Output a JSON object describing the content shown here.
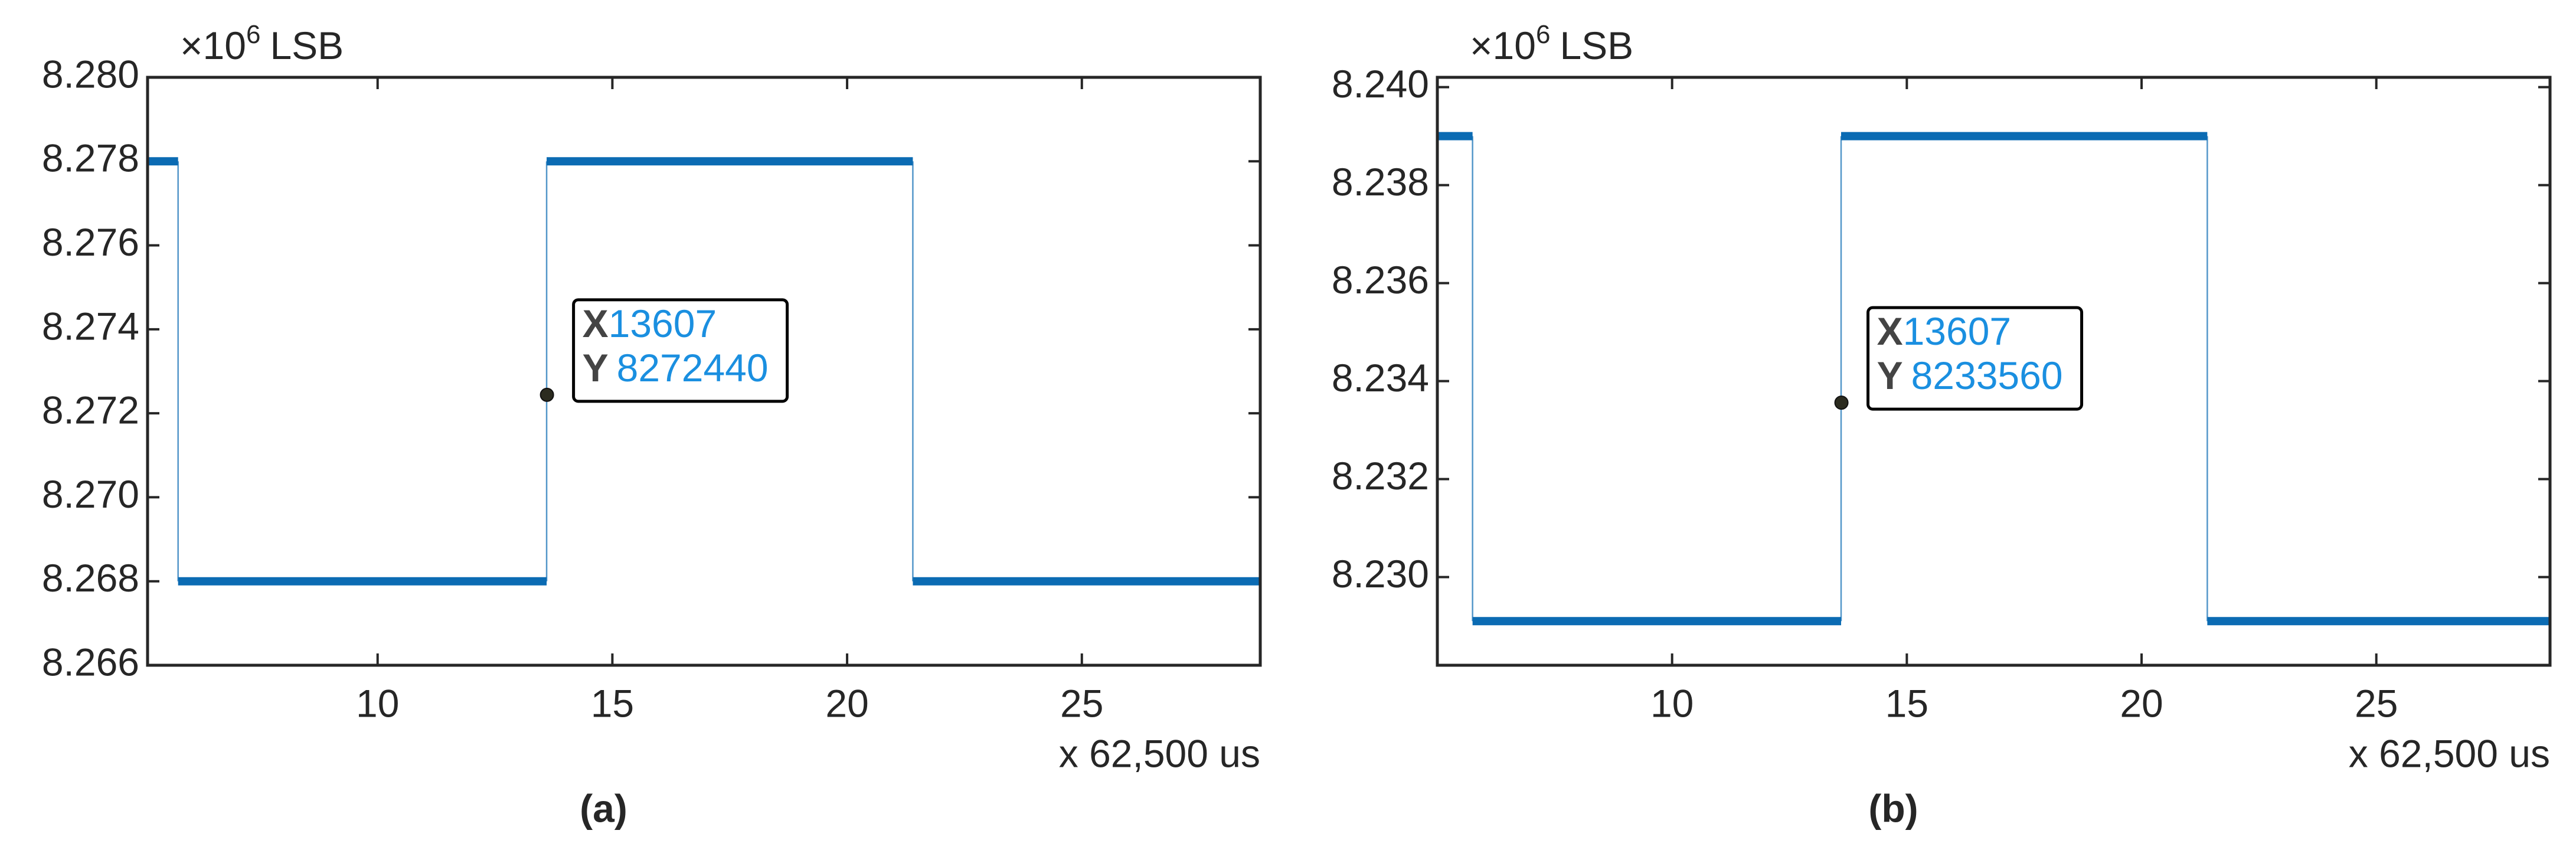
{
  "chart_data": [
    {
      "type": "line",
      "caption": "(a)",
      "y_axis_multiplier": "×10",
      "y_axis_exponent": "6",
      "y_axis_unit": "LSB",
      "x_axis_label": "x 62,500 us",
      "x": [
        5.1,
        5.75,
        5.75,
        13.6,
        13.6,
        21.4,
        21.4,
        28.8
      ],
      "series": [
        {
          "color": "#0b6bb3",
          "values": [
            8.278,
            8.278,
            8.268,
            8.268,
            8.278,
            8.278,
            8.268,
            8.268
          ]
        }
      ],
      "xlim": [
        5.1,
        28.8
      ],
      "xticks": [
        10,
        15,
        20,
        25
      ],
      "ylim": [
        8.266,
        8.28
      ],
      "yticks": [
        {
          "value": 8.266,
          "label": "8.266"
        },
        {
          "value": 8.268,
          "label": "8.268"
        },
        {
          "value": 8.27,
          "label": "8.270"
        },
        {
          "value": 8.272,
          "label": "8.272"
        },
        {
          "value": 8.274,
          "label": "8.274"
        },
        {
          "value": 8.276,
          "label": "8.276"
        },
        {
          "value": 8.278,
          "label": "8.278"
        },
        {
          "value": 8.28,
          "label": "8.280"
        }
      ],
      "datatip": {
        "x": 13.607,
        "y": 8.27244,
        "x_name": "X",
        "x_text": "13607",
        "y_name": "Y",
        "y_text": "8272440"
      }
    },
    {
      "type": "line",
      "caption": "(b)",
      "y_axis_multiplier": "×10",
      "y_axis_exponent": "6",
      "y_axis_unit": "LSB",
      "x_axis_label": "x 62,500 us",
      "x": [
        5.0,
        5.75,
        5.75,
        13.6,
        13.6,
        21.4,
        21.4,
        28.7
      ],
      "series": [
        {
          "color": "#0b6bb3",
          "values": [
            8.239,
            8.239,
            8.2291,
            8.2291,
            8.239,
            8.239,
            8.2291,
            8.2291
          ]
        }
      ],
      "xlim": [
        5.0,
        28.7
      ],
      "xticks": [
        10,
        15,
        20,
        25
      ],
      "ylim": [
        8.2282,
        8.2402
      ],
      "yticks": [
        {
          "value": 8.23,
          "label": "8.230"
        },
        {
          "value": 8.232,
          "label": "8.232"
        },
        {
          "value": 8.234,
          "label": "8.234"
        },
        {
          "value": 8.236,
          "label": "8.236"
        },
        {
          "value": 8.238,
          "label": "8.238"
        },
        {
          "value": 8.24,
          "label": "8.240"
        }
      ],
      "datatip": {
        "x": 13.607,
        "y": 8.23356,
        "x_name": "X",
        "x_text": "13607",
        "y_name": "Y",
        "y_text": "8233560"
      }
    }
  ]
}
